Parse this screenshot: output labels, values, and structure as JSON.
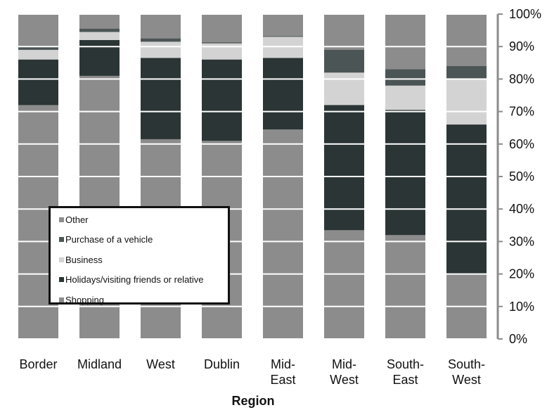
{
  "chart_data": {
    "type": "bar",
    "stacked": true,
    "normalized": true,
    "title": "",
    "xlabel": "Region",
    "ylabel": "",
    "ylim": [
      0,
      100
    ],
    "y_ticks": [
      "0%",
      "10%",
      "20%",
      "30%",
      "40%",
      "50%",
      "60%",
      "70%",
      "80%",
      "90%",
      "100%"
    ],
    "y_axis_side": "right",
    "grid": "horizontal",
    "legend_position": "lower-left inside plot",
    "categories": [
      [
        "Border"
      ],
      [
        "Midland"
      ],
      [
        "West"
      ],
      [
        "Dublin"
      ],
      [
        "Mid-",
        "East"
      ],
      [
        "Mid-",
        "West"
      ],
      [
        "South-",
        "East"
      ],
      [
        "South-",
        "West"
      ]
    ],
    "series": [
      {
        "name": "Shopping",
        "color": "#8c8c8c",
        "values": [
          72,
          81,
          61.5,
          61,
          64.5,
          33.5,
          32,
          20
        ]
      },
      {
        "name": "Holidays/visiting friends or relative",
        "color": "#2b3535",
        "values": [
          14,
          11,
          25,
          25,
          22,
          38.5,
          38.5,
          46
        ]
      },
      {
        "name": "Business",
        "color": "#d3d3d3",
        "values": [
          3,
          2.5,
          5,
          5,
          6.5,
          10,
          7.5,
          14
        ]
      },
      {
        "name": "Purchase of a vehicle",
        "color": "#4c5555",
        "values": [
          1,
          1,
          1,
          0.3,
          0.2,
          7,
          5,
          4
        ]
      },
      {
        "name": "Other",
        "color": "#8c8c8c",
        "values": [
          10,
          4.5,
          7.5,
          8.7,
          6.8,
          11,
          17,
          16
        ]
      }
    ]
  }
}
